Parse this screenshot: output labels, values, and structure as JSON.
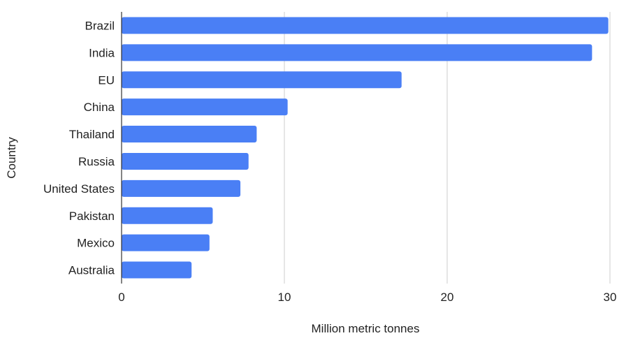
{
  "chart_data": {
    "type": "bar",
    "orientation": "horizontal",
    "categories": [
      "Brazil",
      "India",
      "EU",
      "China",
      "Thailand",
      "Russia",
      "United States",
      "Pakistan",
      "Mexico",
      "Australia"
    ],
    "series": [
      {
        "values": [
          29.9,
          28.9,
          17.2,
          10.2,
          8.3,
          7.8,
          7.3,
          5.6,
          5.4,
          4.3
        ],
        "color": "#4a7ff5"
      }
    ],
    "xlabel": "Million metric tonnes",
    "ylabel": "Country",
    "xlim": [
      0,
      30
    ],
    "xticks": [
      "0",
      "10",
      "20",
      "30"
    ],
    "grid": true,
    "legend": "none"
  }
}
